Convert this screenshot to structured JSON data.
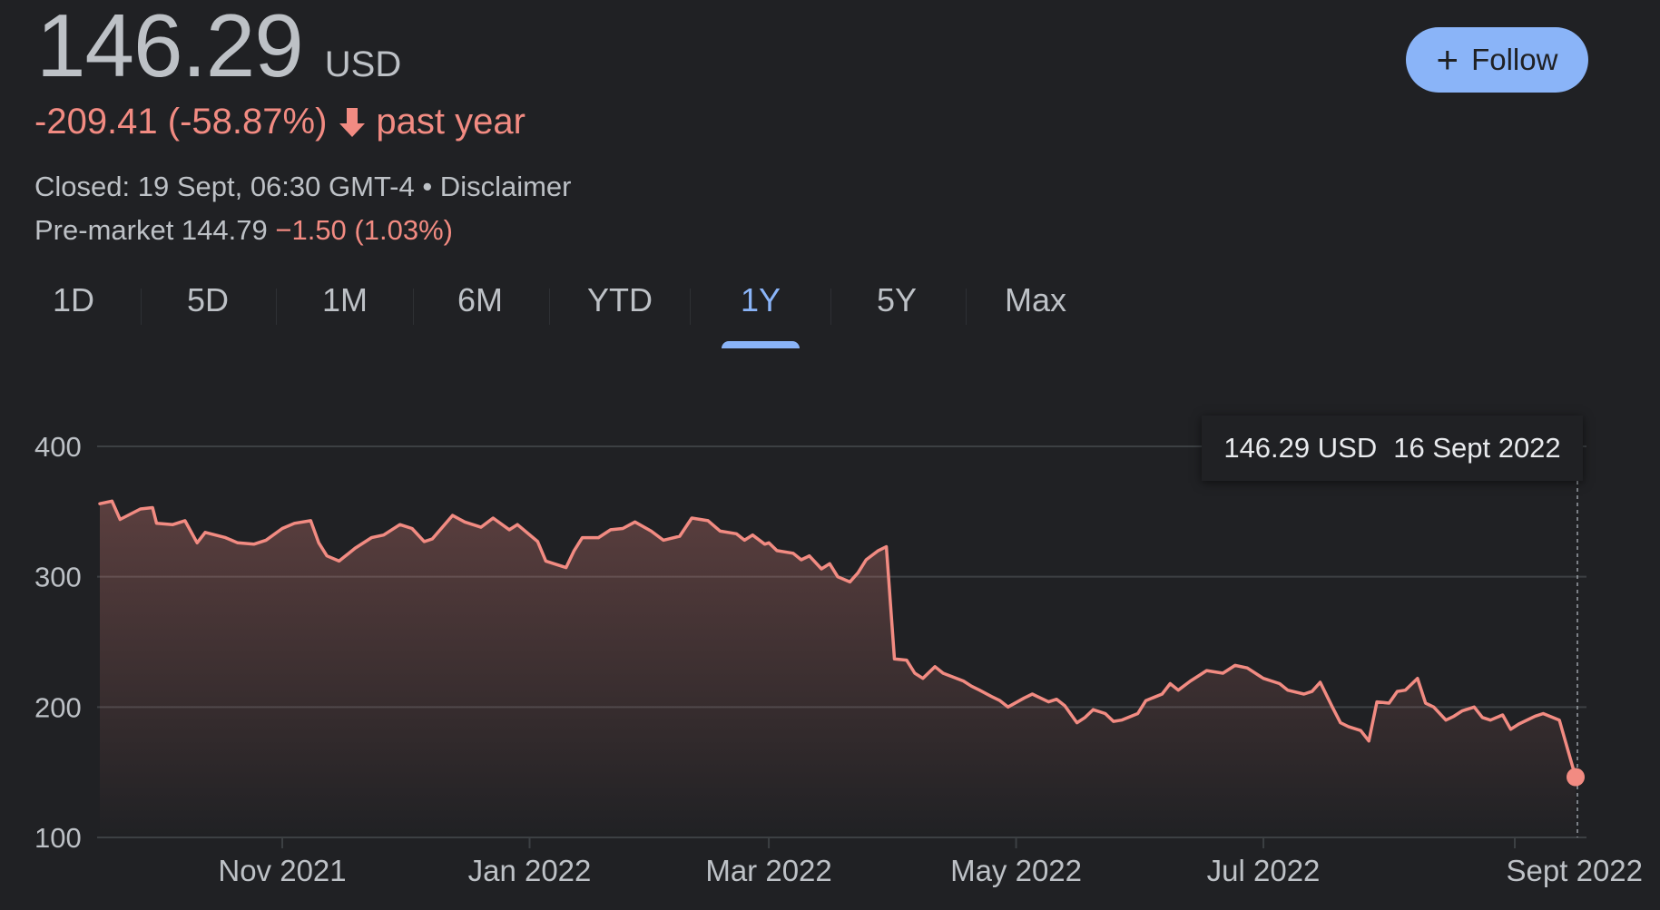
{
  "header": {
    "price": "146.29",
    "currency": "USD",
    "change": "-209.41 (-58.87%)",
    "change_period": "past year",
    "closed": "Closed: 19 Sept, 06:30 GMT-4 • Disclaimer",
    "premarket_label": "Pre-market 144.79",
    "premarket_change": "−1.50 (1.03%)",
    "follow_label": "Follow"
  },
  "tabs": [
    {
      "label": "1D",
      "active": false
    },
    {
      "label": "5D",
      "active": false
    },
    {
      "label": "1M",
      "active": false
    },
    {
      "label": "6M",
      "active": false
    },
    {
      "label": "YTD",
      "active": false
    },
    {
      "label": "1Y",
      "active": true
    },
    {
      "label": "5Y",
      "active": false
    },
    {
      "label": "Max",
      "active": false
    }
  ],
  "tooltip": {
    "value": "146.29 USD",
    "date": "16 Sept 2022"
  },
  "colors": {
    "line": "#f28b82",
    "accent": "#8ab4f8",
    "background": "#202124",
    "grid": "#3c4043"
  },
  "chart_data": {
    "type": "area",
    "ylim": [
      100,
      400
    ],
    "yticks": [
      "400",
      "300",
      "200",
      "100"
    ],
    "ytick_values": [
      400,
      300,
      200,
      100
    ],
    "xtick_labels": [
      "Nov 2021",
      "Jan 2022",
      "Mar 2022",
      "May 2022",
      "Jul 2022",
      "Sept 2022"
    ],
    "xtick_dates": [
      "2021-11-01",
      "2022-01-01",
      "2022-03-01",
      "2022-05-01",
      "2022-07-01",
      "2022-09-01"
    ],
    "xlim": [
      "2021-09-17",
      "2022-09-16"
    ],
    "grid": true,
    "series": [
      {
        "points": [
          [
            "2021-09-17",
            356
          ],
          [
            "2021-09-20",
            358
          ],
          [
            "2021-09-22",
            344
          ],
          [
            "2021-09-27",
            352
          ],
          [
            "2021-09-30",
            353
          ],
          [
            "2021-10-01",
            341
          ],
          [
            "2021-10-05",
            340
          ],
          [
            "2021-10-08",
            343
          ],
          [
            "2021-10-11",
            326
          ],
          [
            "2021-10-13",
            334
          ],
          [
            "2021-10-18",
            330
          ],
          [
            "2021-10-21",
            326
          ],
          [
            "2021-10-25",
            325
          ],
          [
            "2021-10-28",
            328
          ],
          [
            "2021-11-01",
            337
          ],
          [
            "2021-11-04",
            341
          ],
          [
            "2021-11-08",
            343
          ],
          [
            "2021-11-10",
            326
          ],
          [
            "2021-11-12",
            316
          ],
          [
            "2021-11-15",
            312
          ],
          [
            "2021-11-19",
            322
          ],
          [
            "2021-11-23",
            330
          ],
          [
            "2021-11-26",
            332
          ],
          [
            "2021-11-30",
            340
          ],
          [
            "2021-12-03",
            337
          ],
          [
            "2021-12-06",
            327
          ],
          [
            "2021-12-08",
            329
          ],
          [
            "2021-12-13",
            347
          ],
          [
            "2021-12-16",
            342
          ],
          [
            "2021-12-20",
            338
          ],
          [
            "2021-12-23",
            345
          ],
          [
            "2021-12-27",
            336
          ],
          [
            "2021-12-29",
            340
          ],
          [
            "2022-01-03",
            327
          ],
          [
            "2022-01-05",
            312
          ],
          [
            "2022-01-07",
            310
          ],
          [
            "2022-01-10",
            307
          ],
          [
            "2022-01-12",
            320
          ],
          [
            "2022-01-14",
            330
          ],
          [
            "2022-01-18",
            330
          ],
          [
            "2022-01-21",
            336
          ],
          [
            "2022-01-24",
            337
          ],
          [
            "2022-01-27",
            342
          ],
          [
            "2022-01-31",
            335
          ],
          [
            "2022-02-03",
            328
          ],
          [
            "2022-02-07",
            331
          ],
          [
            "2022-02-10",
            345
          ],
          [
            "2022-02-14",
            343
          ],
          [
            "2022-02-17",
            335
          ],
          [
            "2022-02-21",
            333
          ],
          [
            "2022-02-23",
            328
          ],
          [
            "2022-02-25",
            332
          ],
          [
            "2022-02-28",
            325
          ],
          [
            "2022-03-01",
            326
          ],
          [
            "2022-03-03",
            320
          ],
          [
            "2022-03-07",
            318
          ],
          [
            "2022-03-09",
            313
          ],
          [
            "2022-03-11",
            316
          ],
          [
            "2022-03-14",
            306
          ],
          [
            "2022-03-16",
            310
          ],
          [
            "2022-03-18",
            300
          ],
          [
            "2022-03-21",
            296
          ],
          [
            "2022-03-23",
            303
          ],
          [
            "2022-03-25",
            313
          ],
          [
            "2022-03-28",
            320
          ],
          [
            "2022-03-30",
            323
          ],
          [
            "2022-04-01",
            237
          ],
          [
            "2022-04-04",
            236
          ],
          [
            "2022-04-06",
            226
          ],
          [
            "2022-04-08",
            222
          ],
          [
            "2022-04-11",
            231
          ],
          [
            "2022-04-13",
            226
          ],
          [
            "2022-04-18",
            220
          ],
          [
            "2022-04-20",
            216
          ],
          [
            "2022-04-22",
            213
          ],
          [
            "2022-04-25",
            208
          ],
          [
            "2022-04-27",
            205
          ],
          [
            "2022-04-29",
            200
          ],
          [
            "2022-05-03",
            207
          ],
          [
            "2022-05-05",
            210
          ],
          [
            "2022-05-09",
            204
          ],
          [
            "2022-05-11",
            206
          ],
          [
            "2022-05-13",
            201
          ],
          [
            "2022-05-16",
            188
          ],
          [
            "2022-05-18",
            192
          ],
          [
            "2022-05-20",
            198
          ],
          [
            "2022-05-23",
            195
          ],
          [
            "2022-05-25",
            189
          ],
          [
            "2022-05-27",
            190
          ],
          [
            "2022-05-31",
            195
          ],
          [
            "2022-06-02",
            205
          ],
          [
            "2022-06-06",
            210
          ],
          [
            "2022-06-08",
            218
          ],
          [
            "2022-06-10",
            213
          ],
          [
            "2022-06-13",
            220
          ],
          [
            "2022-06-15",
            224
          ],
          [
            "2022-06-17",
            228
          ],
          [
            "2022-06-21",
            226
          ],
          [
            "2022-06-24",
            232
          ],
          [
            "2022-06-27",
            230
          ],
          [
            "2022-06-30",
            224
          ],
          [
            "2022-07-01",
            222
          ],
          [
            "2022-07-05",
            218
          ],
          [
            "2022-07-07",
            213
          ],
          [
            "2022-07-11",
            210
          ],
          [
            "2022-07-13",
            212
          ],
          [
            "2022-07-15",
            219
          ],
          [
            "2022-07-18",
            200
          ],
          [
            "2022-07-20",
            188
          ],
          [
            "2022-07-22",
            185
          ],
          [
            "2022-07-25",
            182
          ],
          [
            "2022-07-27",
            174
          ],
          [
            "2022-07-29",
            204
          ],
          [
            "2022-08-01",
            203
          ],
          [
            "2022-08-03",
            212
          ],
          [
            "2022-08-05",
            213
          ],
          [
            "2022-08-08",
            222
          ],
          [
            "2022-08-10",
            203
          ],
          [
            "2022-08-12",
            200
          ],
          [
            "2022-08-15",
            190
          ],
          [
            "2022-08-17",
            193
          ],
          [
            "2022-08-19",
            197
          ],
          [
            "2022-08-22",
            200
          ],
          [
            "2022-08-24",
            192
          ],
          [
            "2022-08-26",
            190
          ],
          [
            "2022-08-29",
            194
          ],
          [
            "2022-08-31",
            183
          ],
          [
            "2022-09-02",
            187
          ],
          [
            "2022-09-06",
            193
          ],
          [
            "2022-09-08",
            195
          ],
          [
            "2022-09-12",
            190
          ],
          [
            "2022-09-16",
            146.29
          ]
        ]
      }
    ]
  }
}
